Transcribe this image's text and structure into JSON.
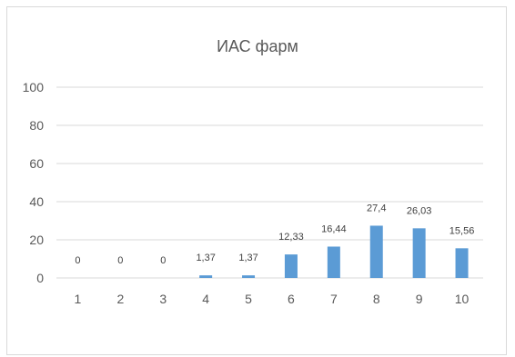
{
  "chart_data": {
    "type": "bar",
    "title": "ИАС фарм",
    "categories": [
      "1",
      "2",
      "3",
      "4",
      "5",
      "6",
      "7",
      "8",
      "9",
      "10"
    ],
    "values": [
      0,
      0,
      0,
      1.37,
      1.37,
      12.33,
      16.44,
      27.4,
      26.03,
      15.56
    ],
    "data_labels": [
      "0",
      "0",
      "0",
      "1,37",
      "1,37",
      "12,33",
      "16,44",
      "27,4",
      "26,03",
      "15,56"
    ],
    "yticks": [
      "0",
      "20",
      "40",
      "60",
      "80",
      "100"
    ],
    "ylim": [
      0,
      100
    ],
    "grid": true,
    "legend": "none",
    "bar_color": "#5b9bd5"
  }
}
